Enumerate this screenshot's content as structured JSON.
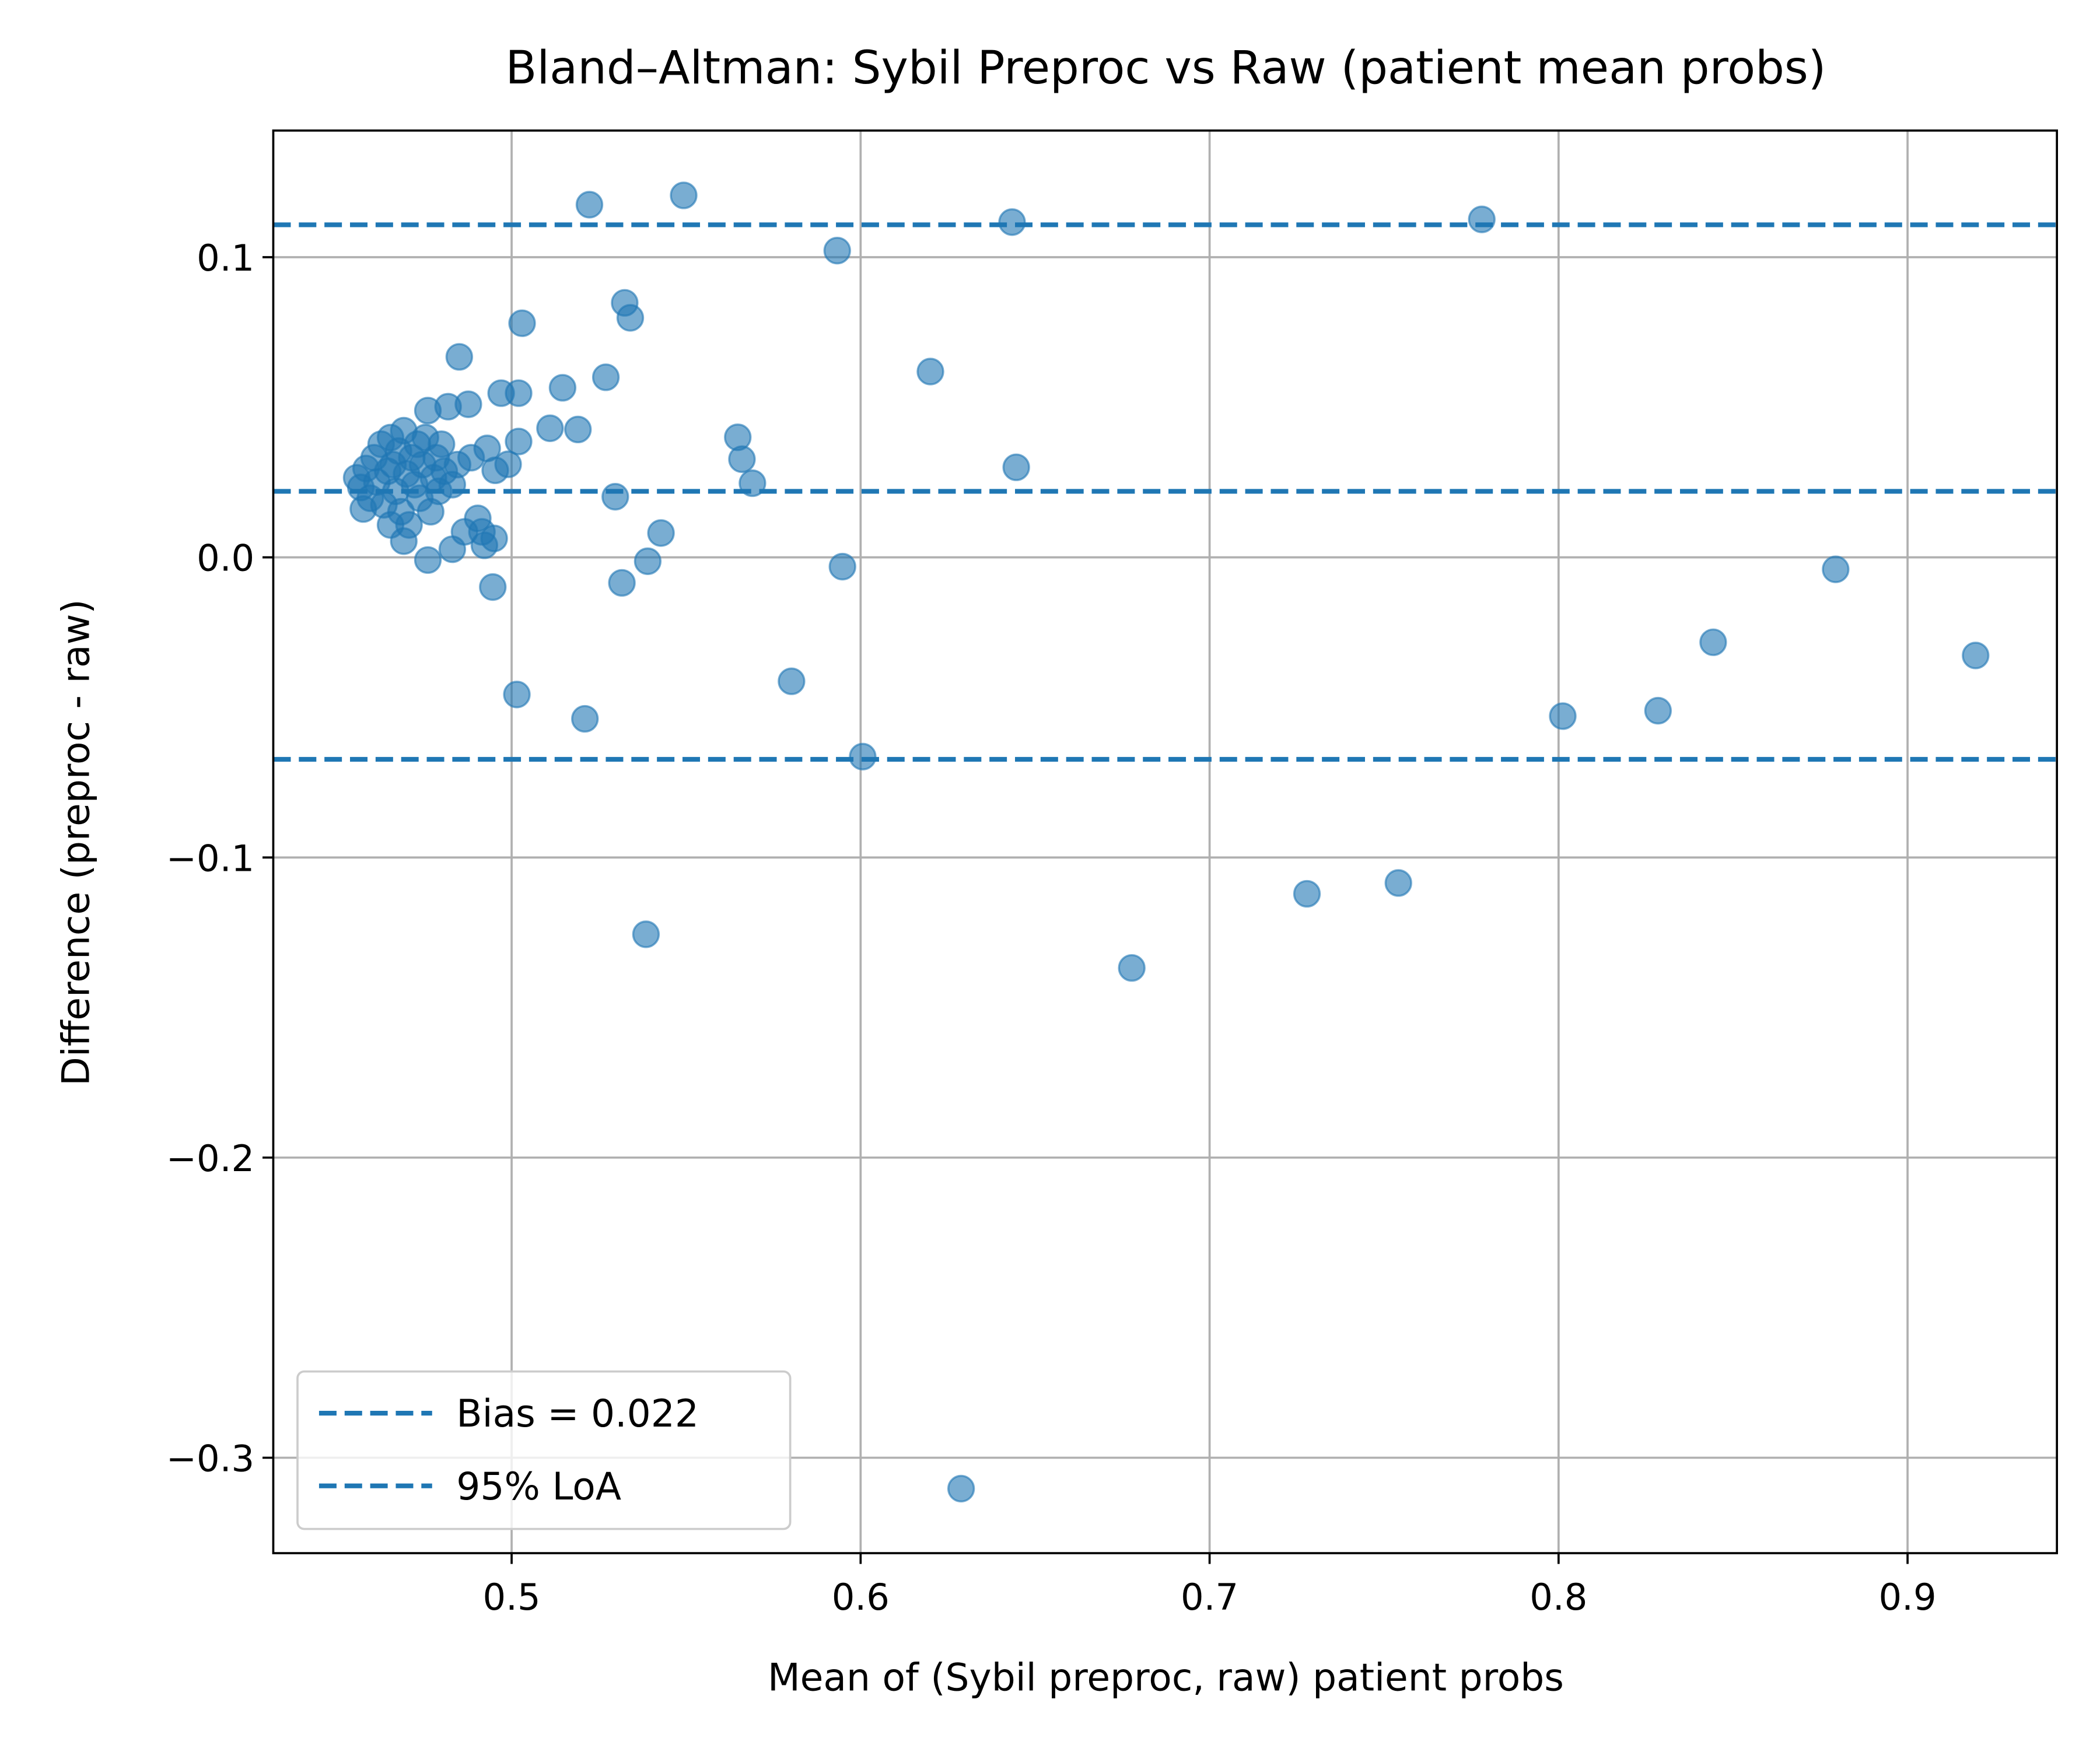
{
  "chart_data": {
    "type": "scatter",
    "title": "Bland–Altman: Sybil Preproc vs Raw (patient mean probs)",
    "x_label": "Mean of (Sybil preproc, raw) patient probs",
    "y_label": "Difference (preproc - raw)",
    "xlim": [
      0.4317,
      0.9428
    ],
    "ylim": [
      -0.3318,
      0.1422
    ],
    "xticks": [
      0.5,
      0.6,
      0.7,
      0.8,
      0.9
    ],
    "yticks": [
      {
        "value": -0.3,
        "label": "−0.3"
      },
      {
        "value": -0.2,
        "label": "−0.2"
      },
      {
        "value": -0.1,
        "label": "−0.1"
      },
      {
        "value": 0,
        "label": "0.0"
      },
      0.1
    ],
    "grid": true,
    "legend": "lower left",
    "series": [
      {
        "color": "#1f77b4",
        "x": [
          0.5223,
          0.5493,
          0.5933,
          0.6434,
          0.778,
          0.5324,
          0.534,
          0.503,
          0.485,
          0.62,
          0.527,
          0.5146,
          0.502,
          0.497,
          0.4876,
          0.511,
          0.519,
          0.5648,
          0.566,
          0.569,
          0.6446,
          0.502,
          0.493,
          0.499,
          0.4953,
          0.5297,
          0.5428,
          0.539,
          0.5316,
          0.5948,
          0.4946,
          0.5015,
          0.521,
          0.5802,
          0.6006,
          0.5385,
          0.6777,
          0.7279,
          0.7541,
          0.6288,
          0.8012,
          0.8285,
          0.8443,
          0.8794,
          0.9195,
          0.4556,
          0.4568,
          0.4583,
          0.4595,
          0.4606,
          0.4614,
          0.4626,
          0.4634,
          0.4645,
          0.4653,
          0.466,
          0.4668,
          0.4676,
          0.4683,
          0.4691,
          0.4699,
          0.4706,
          0.4714,
          0.4722,
          0.473,
          0.4737,
          0.4745,
          0.4753,
          0.476,
          0.4768,
          0.4776,
          0.4784,
          0.4791,
          0.4799,
          0.4807,
          0.4818,
          0.483,
          0.4845,
          0.4865,
          0.4884,
          0.4903,
          0.4915,
          0.4922,
          0.495,
          0.4691,
          0.476,
          0.483,
          0.4575,
          0.4653
        ],
        "values": [
          0.1175,
          0.1206,
          0.1022,
          0.1117,
          0.1126,
          0.0848,
          0.0798,
          0.078,
          0.0668,
          0.0619,
          0.06,
          0.0565,
          0.0547,
          0.0547,
          0.051,
          0.043,
          0.0426,
          0.04,
          0.0327,
          0.0247,
          0.03,
          0.0386,
          0.0363,
          0.031,
          0.029,
          0.0202,
          0.0081,
          -0.0013,
          -0.0085,
          -0.0031,
          -0.0099,
          -0.0457,
          -0.0538,
          -0.0413,
          -0.0664,
          -0.1256,
          -0.1368,
          -0.1121,
          -0.1085,
          -0.3103,
          -0.0529,
          -0.0511,
          -0.0283,
          -0.004,
          -0.0327,
          0.0265,
          0.0233,
          0.0296,
          0.0197,
          0.0332,
          0.0251,
          0.0377,
          0.0175,
          0.0287,
          0.0399,
          0.0309,
          0.022,
          0.0354,
          0.0152,
          0.0422,
          0.0278,
          0.0108,
          0.0332,
          0.0242,
          0.0377,
          0.0197,
          0.0309,
          0.0399,
          0.0489,
          0.0152,
          0.0265,
          0.0332,
          0.022,
          0.0377,
          0.0287,
          0.0502,
          0.0242,
          0.0309,
          0.0085,
          0.0332,
          0.013,
          0.0085,
          0.004,
          0.0063,
          0.0054,
          -0.0009,
          0.0027,
          0.0161,
          0.0108
        ]
      }
    ],
    "ref_lines": [
      {
        "name": "Bias = 0.022",
        "color": "#1f77b4",
        "values": [
          0.022
        ]
      },
      {
        "name": "95% LoA",
        "color": "#1f77b4",
        "values": [
          0.1108,
          -0.0673
        ]
      }
    ]
  }
}
